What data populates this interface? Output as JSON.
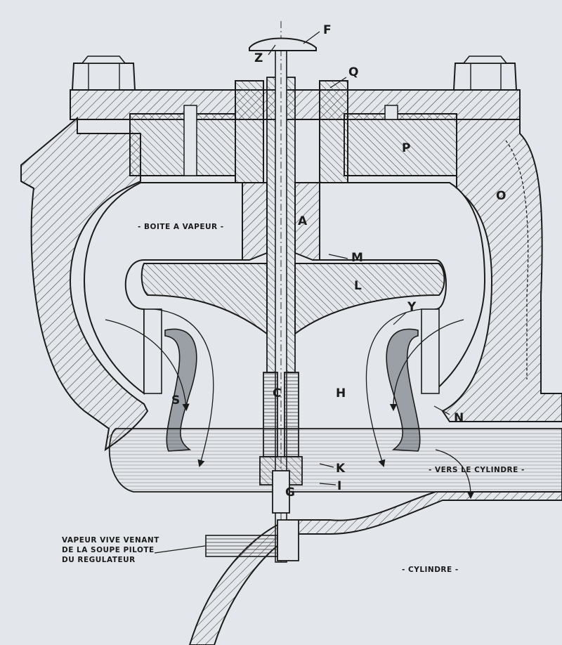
{
  "colors": {
    "paper": "#e3e6ea",
    "ink": "#1b1b1b",
    "hatch": "#3a3a3a"
  },
  "labels": {
    "F": "F",
    "Z": "Z",
    "Q": "Q",
    "P": "P",
    "O": "O",
    "A": "A",
    "M": "M",
    "L": "L",
    "Y": "Y",
    "C": "C",
    "H": "H",
    "S": "S",
    "N": "N",
    "K": "K",
    "I": "I",
    "G": "G"
  },
  "captions": {
    "boite": "- BOITE A VAPEUR -",
    "vers": "- VERS LE CYLINDRE -",
    "cylindre": "- CYLINDRE -",
    "vapeur_line1": "VAPEUR VIVE VENANT",
    "vapeur_line2": "DE LA SOUPE PILOTE",
    "vapeur_line3": "DU REGULATEUR"
  }
}
